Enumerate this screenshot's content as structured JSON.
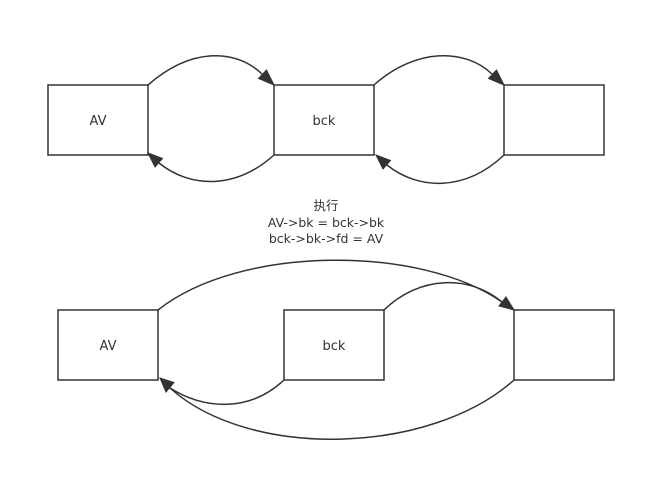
{
  "colors": {
    "stroke": "#333333",
    "background": "#ffffff",
    "text": "#333333"
  },
  "before": {
    "nodes": [
      {
        "id": "av",
        "label": "AV"
      },
      {
        "id": "bck",
        "label": "bck"
      },
      {
        "id": "third",
        "label": ""
      }
    ],
    "edges": [
      {
        "from": "AV",
        "to": "bck"
      },
      {
        "from": "bck",
        "to": "AV"
      },
      {
        "from": "bck",
        "to": "third"
      },
      {
        "from": "third",
        "to": "bck"
      }
    ]
  },
  "caption": {
    "line1": "执行",
    "line2": "AV->bk = bck->bk",
    "line3": "bck->bk->fd = AV"
  },
  "after": {
    "nodes": [
      {
        "id": "av",
        "label": "AV"
      },
      {
        "id": "bck",
        "label": "bck"
      },
      {
        "id": "third",
        "label": ""
      }
    ],
    "edges": [
      {
        "from": "AV",
        "to": "third"
      },
      {
        "from": "bck",
        "to": "third"
      },
      {
        "from": "bck",
        "to": "AV"
      },
      {
        "from": "third",
        "to": "AV"
      }
    ]
  }
}
